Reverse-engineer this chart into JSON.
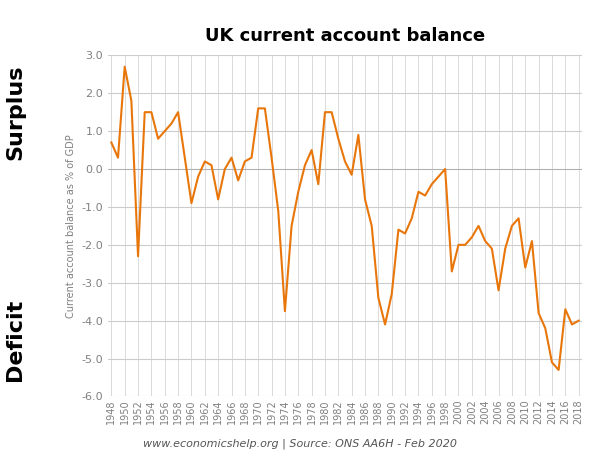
{
  "title": "UK current account balance",
  "ylabel": "Current account balance as % of GDP",
  "xlabel_note": "www.economicshelp.org | Source: ONS AA6H - Feb 2020",
  "surplus_label": "Surplus",
  "deficit_label": "Deficit",
  "line_color": "#E8760A",
  "background_color": "#FFFFFF",
  "ylim": [
    -6.0,
    3.0
  ],
  "yticks": [
    -6.0,
    -5.0,
    -4.0,
    -3.0,
    -2.0,
    -1.0,
    0.0,
    1.0,
    2.0,
    3.0
  ],
  "grid_color": "#CCCCCC",
  "years": [
    1948,
    1949,
    1950,
    1951,
    1952,
    1953,
    1954,
    1955,
    1956,
    1957,
    1958,
    1959,
    1960,
    1961,
    1962,
    1963,
    1964,
    1965,
    1966,
    1967,
    1968,
    1969,
    1970,
    1971,
    1972,
    1973,
    1974,
    1975,
    1976,
    1977,
    1978,
    1979,
    1980,
    1981,
    1982,
    1983,
    1984,
    1985,
    1986,
    1987,
    1988,
    1989,
    1990,
    1991,
    1992,
    1993,
    1994,
    1995,
    1996,
    1997,
    1998,
    1999,
    2000,
    2001,
    2002,
    2003,
    2004,
    2005,
    2006,
    2007,
    2008,
    2009,
    2010,
    2011,
    2012,
    2013,
    2014,
    2015,
    2016,
    2017,
    2018
  ],
  "values": [
    0.7,
    0.3,
    2.7,
    1.8,
    -2.3,
    1.5,
    1.5,
    0.8,
    1.0,
    1.2,
    1.5,
    0.3,
    -0.9,
    -0.2,
    0.2,
    0.1,
    -0.8,
    0.0,
    0.3,
    -0.3,
    0.2,
    0.3,
    1.6,
    1.6,
    0.3,
    -1.1,
    -3.75,
    -1.5,
    -0.6,
    0.1,
    0.5,
    -0.4,
    1.5,
    1.5,
    0.8,
    0.2,
    -0.15,
    0.9,
    -0.8,
    -1.5,
    -3.4,
    -4.1,
    -3.3,
    -1.6,
    -1.7,
    -1.3,
    -0.6,
    -0.7,
    -0.4,
    -0.2,
    -0.0,
    -2.7,
    -2.0,
    -2.0,
    -1.8,
    -1.5,
    -1.9,
    -2.1,
    -3.2,
    -2.1,
    -1.5,
    -1.3,
    -2.6,
    -1.9,
    -3.8,
    -4.2,
    -5.1,
    -5.3,
    -3.7,
    -4.1,
    -4.0
  ]
}
